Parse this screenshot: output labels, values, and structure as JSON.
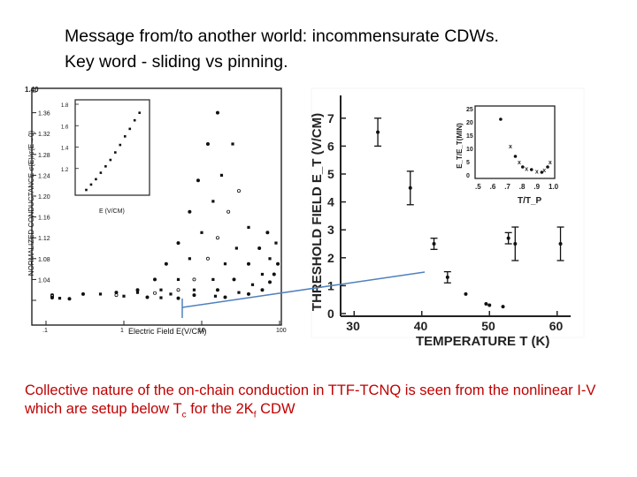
{
  "title": {
    "line1": "Message from/to another world: incommensurate CDWs.",
    "line2": "Key word - sliding vs pinning."
  },
  "caption": {
    "part1": "Collective nature of the on-chain conduction in TTF-TCNQ is seen from the nonlinear I-V which are setup below T",
    "sub1": "c",
    "part2": " for the 2K",
    "sub2": "f",
    "part3": " CDW"
  },
  "colors": {
    "caption": "#c00000",
    "connector": "#4f81bd",
    "ink": "#111111"
  },
  "chart_data": [
    {
      "type": "scatter",
      "xscale": "log",
      "xlabel": "Electric Field E(V/CM)",
      "ylabel": "NORMALIZED CONDUCTANCE σ(E)/σ(E→0)",
      "xlim": [
        0.1,
        100
      ],
      "ylim": [
        1.0,
        1.4
      ],
      "xticklabels": [
        ".1",
        "1",
        "10",
        "100"
      ],
      "yticklabels": [
        "1.00",
        "1.04",
        "1.08",
        "1.12",
        "1.16",
        "1.20",
        "1.24",
        "1.28",
        "1.32",
        "1.36",
        "1.40"
      ],
      "series": [
        {
          "values": [
            [
              0.12,
              1.01
            ],
            [
              0.3,
              1.012
            ],
            [
              0.8,
              1.015
            ],
            [
              1.5,
              1.02
            ],
            [
              2.5,
              1.04
            ],
            [
              3.5,
              1.07
            ],
            [
              5,
              1.11
            ],
            [
              7,
              1.17
            ],
            [
              9,
              1.23
            ],
            [
              12,
              1.3
            ],
            [
              16,
              1.36
            ]
          ]
        },
        {
          "values": [
            [
              0.12,
              1.01
            ],
            [
              0.5,
              1.012
            ],
            [
              1.5,
              1.015
            ],
            [
              3,
              1.02
            ],
            [
              5,
              1.04
            ],
            [
              7,
              1.08
            ],
            [
              10,
              1.13
            ],
            [
              14,
              1.19
            ],
            [
              18,
              1.24
            ],
            [
              25,
              1.3
            ]
          ]
        },
        {
          "values": [
            [
              0.12,
              1.008
            ],
            [
              0.8,
              1.01
            ],
            [
              2.5,
              1.014
            ],
            [
              5,
              1.02
            ],
            [
              8,
              1.04
            ],
            [
              12,
              1.08
            ],
            [
              16,
              1.12
            ],
            [
              22,
              1.17
            ],
            [
              30,
              1.21
            ]
          ]
        },
        {
          "values": [
            [
              0.12,
              1.006
            ],
            [
              1,
              1.008
            ],
            [
              4,
              1.012
            ],
            [
              8,
              1.02
            ],
            [
              14,
              1.04
            ],
            [
              20,
              1.07
            ],
            [
              28,
              1.1
            ],
            [
              40,
              1.14
            ]
          ]
        },
        {
          "values": [
            [
              0.12,
              1.005
            ],
            [
              2,
              1.006
            ],
            [
              8,
              1.01
            ],
            [
              16,
              1.02
            ],
            [
              26,
              1.04
            ],
            [
              40,
              1.07
            ],
            [
              55,
              1.1
            ],
            [
              70,
              1.13
            ]
          ]
        },
        {
          "values": [
            [
              0.15,
              1.004
            ],
            [
              3,
              1.005
            ],
            [
              15,
              1.008
            ],
            [
              30,
              1.015
            ],
            [
              45,
              1.03
            ],
            [
              60,
              1.05
            ],
            [
              75,
              1.08
            ],
            [
              90,
              1.11
            ]
          ]
        },
        {
          "values": [
            [
              0.2,
              1.003
            ],
            [
              5,
              1.004
            ],
            [
              20,
              1.006
            ],
            [
              40,
              1.012
            ],
            [
              60,
              1.02
            ],
            [
              75,
              1.035
            ],
            [
              85,
              1.05
            ],
            [
              95,
              1.07
            ]
          ]
        }
      ],
      "inset": {
        "type": "scatter",
        "xlabel": "E (V/CM)",
        "yticklabels": [
          "1.2",
          "1.4",
          "1.6",
          "1.8"
        ],
        "xlim": [
          0,
          4
        ],
        "ylim": [
          1.0,
          1.8
        ],
        "values": [
          [
            0.3,
            1.0
          ],
          [
            0.6,
            1.05
          ],
          [
            0.9,
            1.1
          ],
          [
            1.2,
            1.16
          ],
          [
            1.5,
            1.22
          ],
          [
            1.8,
            1.28
          ],
          [
            2.1,
            1.35
          ],
          [
            2.4,
            1.42
          ],
          [
            2.7,
            1.5
          ],
          [
            3.0,
            1.57
          ],
          [
            3.3,
            1.65
          ],
          [
            3.6,
            1.72
          ]
        ]
      }
    },
    {
      "type": "scatter",
      "xlabel": "TEMPERATURE T (K)",
      "ylabel": "THRESHOLD FIELD E_T (V/CM)",
      "xlim": [
        28,
        62
      ],
      "ylim": [
        0,
        7.5
      ],
      "xticklabels": [
        "30",
        "40",
        "50",
        "60"
      ],
      "yticklabels": [
        "0",
        "1",
        "2",
        "3",
        "4",
        "5",
        "6",
        "7"
      ],
      "points": [
        {
          "x": 33.5,
          "y": 6.5,
          "err": 0.5
        },
        {
          "x": 38.3,
          "y": 4.5,
          "err": 0.6
        },
        {
          "x": 41.8,
          "y": 2.5,
          "err": 0.2
        },
        {
          "x": 43.8,
          "y": 1.3,
          "err": 0.2
        },
        {
          "x": 46.5,
          "y": 0.7
        },
        {
          "x": 49.5,
          "y": 0.35
        },
        {
          "x": 50.0,
          "y": 0.3
        },
        {
          "x": 52.0,
          "y": 0.25
        },
        {
          "x": 52.8,
          "y": 2.7,
          "err": 0.2
        },
        {
          "x": 53.8,
          "y": 2.5,
          "err": 0.6
        },
        {
          "x": 60.5,
          "y": 2.5,
          "err": 0.6
        }
      ],
      "inset": {
        "xlabel": "T/T_P",
        "ylabel": "E_T/E_T(MIN)",
        "xlim": [
          0.5,
          1.0
        ],
        "ylim": [
          0,
          25
        ],
        "xticklabels": [
          ".5",
          ".6",
          ".7",
          ".8",
          ".9",
          "1.0"
        ],
        "yticklabels": [
          "0",
          "5",
          "10",
          "15",
          "20",
          "25"
        ],
        "points": [
          [
            0.65,
            21
          ],
          [
            0.72,
            11
          ],
          [
            0.75,
            7
          ],
          [
            0.78,
            5
          ],
          [
            0.8,
            3
          ],
          [
            0.83,
            2.5
          ],
          [
            0.86,
            2
          ],
          [
            0.9,
            1.5
          ],
          [
            0.93,
            1
          ],
          [
            0.95,
            2
          ],
          [
            0.97,
            3
          ],
          [
            0.99,
            5
          ]
        ]
      }
    }
  ]
}
